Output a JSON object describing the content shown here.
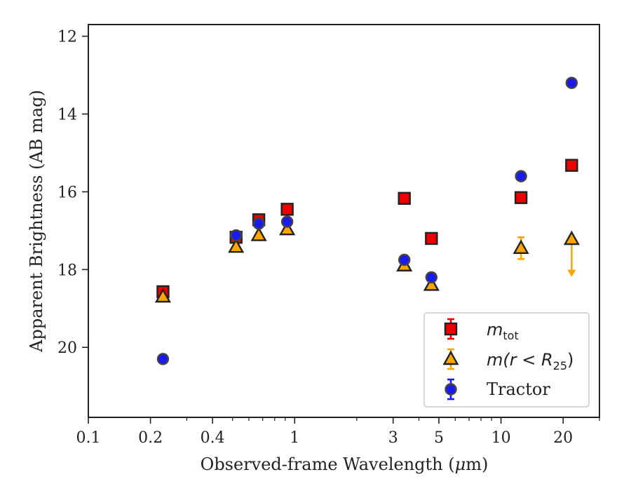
{
  "chart_data": {
    "type": "scatter",
    "xlabel_main": "Observed-frame Wavelength (",
    "xlabel_unit": "μ",
    "xlabel_unit_rest": "m)",
    "ylabel": "Apparent Brightness (AB mag)",
    "xscale": "log",
    "xlim": [
      0.1,
      30
    ],
    "ylim": [
      21.8,
      11.7
    ],
    "y_inverted": true,
    "x_major_ticks": [
      0.1,
      0.2,
      0.4,
      1,
      3,
      5,
      10,
      20
    ],
    "x_tick_labels": [
      "0.1",
      "0.2",
      "0.4",
      "1",
      "3",
      "5",
      "10",
      "20"
    ],
    "y_ticks": [
      12,
      14,
      16,
      18,
      20
    ],
    "y_tick_labels": [
      "12",
      "14",
      "16",
      "18",
      "20"
    ],
    "grid": false,
    "legend_position": "lower-right",
    "series": [
      {
        "key": "mtot",
        "legend_main": "m",
        "legend_sub": "tot",
        "marker": "square",
        "face": "#ee0000",
        "edge": "#222222",
        "errcolor": "#ee0000",
        "points": [
          {
            "x": 0.23,
            "y": 18.57,
            "err": 0.05
          },
          {
            "x": 0.52,
            "y": 17.17,
            "err": 0.05
          },
          {
            "x": 0.67,
            "y": 16.72,
            "err": 0.05
          },
          {
            "x": 0.92,
            "y": 16.45,
            "err": 0.05
          },
          {
            "x": 3.4,
            "y": 16.17,
            "err": 0.05
          },
          {
            "x": 4.6,
            "y": 17.2,
            "err": 0.05
          },
          {
            "x": 12.5,
            "y": 16.15,
            "err": 0.05
          },
          {
            "x": 22.0,
            "y": 15.32,
            "err": 0.05
          }
        ]
      },
      {
        "key": "mr25",
        "legend_main": "m(r < R",
        "legend_sub": "25",
        "legend_end": ")",
        "marker": "triangle",
        "face": "#ffa500",
        "edge": "#222222",
        "errcolor": "#ffa500",
        "points": [
          {
            "x": 0.23,
            "y": 18.7,
            "err": 0.05
          },
          {
            "x": 0.52,
            "y": 17.42,
            "err": 0.05
          },
          {
            "x": 0.67,
            "y": 17.12,
            "err": 0.05
          },
          {
            "x": 0.92,
            "y": 16.97,
            "err": 0.05
          },
          {
            "x": 3.4,
            "y": 17.9,
            "err": 0.05
          },
          {
            "x": 4.6,
            "y": 18.4,
            "err": 0.05
          },
          {
            "x": 12.5,
            "y": 17.45,
            "err": 0.28
          },
          {
            "x": 22.0,
            "y": 17.22,
            "upper_limit_to": 18.15
          }
        ]
      },
      {
        "key": "tractor",
        "legend_main": "Tractor",
        "marker": "circle",
        "face": "#1a1aee",
        "edge": "#444444",
        "errcolor": "#1a1aee",
        "points": [
          {
            "x": 0.23,
            "y": 20.3,
            "err": 0.05
          },
          {
            "x": 0.52,
            "y": 17.12,
            "err": 0.05
          },
          {
            "x": 0.67,
            "y": 16.82,
            "err": 0.05
          },
          {
            "x": 0.92,
            "y": 16.77,
            "err": 0.05
          },
          {
            "x": 3.4,
            "y": 17.75,
            "err": 0.05
          },
          {
            "x": 4.6,
            "y": 18.2,
            "err": 0.05
          },
          {
            "x": 12.5,
            "y": 15.6,
            "err": 0.05
          },
          {
            "x": 22.0,
            "y": 13.2,
            "err": 0.05
          }
        ]
      }
    ]
  }
}
